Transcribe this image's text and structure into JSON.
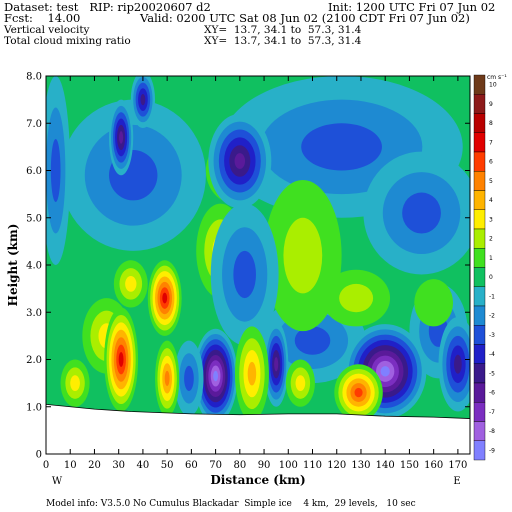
{
  "header": {
    "dataset": "Dataset: test   RIP: rip20020607 d2",
    "init": "Init: 1200 UTC Fri 07 Jun 02",
    "fcst": "Fcst:    14.00",
    "valid": "Valid: 0200 UTC Sat 08 Jun 02 (2100 CDT Fri 07 Jun 02)",
    "field1": "Vertical velocity",
    "xy1": "XY=  13.7, 34.1 to  57.3, 31.4",
    "field2": "Total cloud mixing ratio",
    "xy2": "XY=  13.7, 34.1 to  57.3, 31.4"
  },
  "footer": {
    "model_info": "Model info: V3.5.0 No Cumulus Blackadar  Simple ice    4 km,  29 levels,   10 sec"
  },
  "colors": {
    "levels": [
      "#8080ff",
      "#a060e0",
      "#7b2ec0",
      "#5a1a9a",
      "#3a1a8a",
      "#2020c8",
      "#1e50d8",
      "#1e8ad2",
      "#28b0c8",
      "#10c060",
      "#40e020",
      "#aaee00",
      "#ffee00",
      "#ffb400",
      "#ff8200",
      "#ff3c00",
      "#e00000",
      "#b80000",
      "#8c1a1a",
      "#6e3a1a"
    ]
  },
  "chart_data": {
    "type": "heatmap",
    "title": "Vertical velocity",
    "xlabel": "Distance (km)",
    "ylabel": "Height (km)",
    "xlim": [
      0,
      175
    ],
    "ylim": [
      0,
      8
    ],
    "x_ticks": [
      "0",
      "10",
      "20",
      "30",
      "40",
      "50",
      "60",
      "70",
      "80",
      "90",
      "100",
      "110",
      "120",
      "130",
      "140",
      "150",
      "160",
      "170"
    ],
    "y_ticks": [
      "0",
      "1.0",
      "2.0",
      "3.0",
      "4.0",
      "5.0",
      "6.0",
      "7.0",
      "8.0"
    ],
    "x_end_labels": [
      "W",
      "E"
    ],
    "colorbar": {
      "unit": "cm s⁻¹",
      "labels": [
        "-9",
        "-8",
        "-7",
        "-6",
        "-5",
        "-4",
        "-3",
        "-2",
        "-1",
        "0",
        "1",
        "2",
        "3",
        "4",
        "5",
        "6",
        "7",
        "8",
        "9",
        "10"
      ]
    },
    "background_level": 0,
    "terrain": [
      [
        0,
        1.05
      ],
      [
        20,
        0.95
      ],
      [
        35,
        0.9
      ],
      [
        60,
        0.85
      ],
      [
        80,
        0.83
      ],
      [
        100,
        0.85
      ],
      [
        120,
        0.85
      ],
      [
        140,
        0.8
      ],
      [
        160,
        0.78
      ],
      [
        175,
        0.75
      ]
    ],
    "features": [
      {
        "x": 122,
        "y": 6.5,
        "rx": 50,
        "ry": 1.5,
        "value": -3
      },
      {
        "x": 36,
        "y": 5.9,
        "rx": 30,
        "ry": 1.6,
        "value": -3
      },
      {
        "x": 155,
        "y": 5.1,
        "rx": 24,
        "ry": 1.3,
        "value": -3
      },
      {
        "x": 162,
        "y": 2.6,
        "rx": 12,
        "ry": 1.0,
        "value": -3
      },
      {
        "x": 110,
        "y": 2.4,
        "rx": 22,
        "ry": 0.9,
        "value": -3
      },
      {
        "x": 4,
        "y": 6.0,
        "rx": 6,
        "ry": 2.0,
        "value": -3
      },
      {
        "x": 106,
        "y": 4.2,
        "rx": 16,
        "ry": 1.6,
        "value": 2
      },
      {
        "x": 128,
        "y": 3.3,
        "rx": 14,
        "ry": 0.6,
        "value": 2
      },
      {
        "x": 78,
        "y": 6.0,
        "rx": 12,
        "ry": 0.7,
        "value": 2
      },
      {
        "x": 72,
        "y": 4.3,
        "rx": 10,
        "ry": 1.0,
        "value": 3
      },
      {
        "x": 35,
        "y": 3.6,
        "rx": 7,
        "ry": 0.5,
        "value": 3
      },
      {
        "x": 25,
        "y": 2.5,
        "rx": 10,
        "ry": 0.8,
        "value": 3
      },
      {
        "x": 82,
        "y": 3.8,
        "rx": 14,
        "ry": 1.5,
        "value": -3
      },
      {
        "x": 80,
        "y": 6.2,
        "rx": 13,
        "ry": 1.0,
        "value": -6
      },
      {
        "x": 31,
        "y": 6.7,
        "rx": 5,
        "ry": 0.8,
        "value": -6
      },
      {
        "x": 40,
        "y": 7.5,
        "rx": 5,
        "ry": 0.6,
        "value": -5
      },
      {
        "x": 70,
        "y": 1.65,
        "rx": 9,
        "ry": 1.0,
        "value": -9
      },
      {
        "x": 95,
        "y": 1.9,
        "rx": 5,
        "ry": 0.9,
        "value": -6
      },
      {
        "x": 140,
        "y": 1.75,
        "rx": 17,
        "ry": 1.0,
        "value": -9
      },
      {
        "x": 170,
        "y": 1.9,
        "rx": 8,
        "ry": 1.0,
        "value": -5
      },
      {
        "x": 59,
        "y": 1.6,
        "rx": 6,
        "ry": 0.8,
        "value": -3
      },
      {
        "x": 49,
        "y": 3.3,
        "rx": 7,
        "ry": 0.8,
        "value": 7
      },
      {
        "x": 31,
        "y": 2.0,
        "rx": 7,
        "ry": 1.1,
        "value": 7
      },
      {
        "x": 50,
        "y": 1.6,
        "rx": 5,
        "ry": 0.8,
        "value": 5
      },
      {
        "x": 85,
        "y": 1.7,
        "rx": 7,
        "ry": 1.0,
        "value": 4
      },
      {
        "x": 129,
        "y": 1.3,
        "rx": 10,
        "ry": 0.6,
        "value": 6
      },
      {
        "x": 12,
        "y": 1.5,
        "rx": 6,
        "ry": 0.5,
        "value": 3
      },
      {
        "x": 105,
        "y": 1.5,
        "rx": 6,
        "ry": 0.5,
        "value": 3
      },
      {
        "x": 160,
        "y": 3.2,
        "rx": 8,
        "ry": 0.5,
        "value": 1
      }
    ]
  }
}
